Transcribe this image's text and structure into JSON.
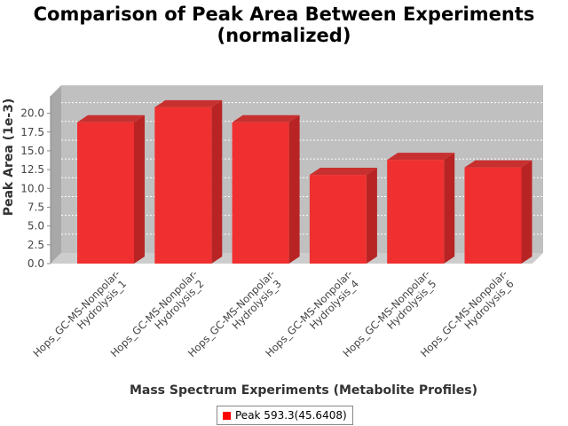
{
  "chart_data": {
    "type": "bar",
    "title_line1": "Comparison of Peak Area Between Experiments",
    "title_line2": "(normalized)",
    "xlabel": "Mass Spectrum Experiments (Metabolite Profiles)",
    "ylabel": "Peak Area (1e-3)",
    "categories": [
      [
        "Hops_GC-MS-Nonpolar-",
        "Hydrolysis_1"
      ],
      [
        "Hops_GC-MS-Nonpolar-",
        "Hydrolysis_2"
      ],
      [
        "Hops_GC-MS-Nonpolar-",
        "Hydrolysis_3"
      ],
      [
        "Hops_GC-MS-Nonpolar-",
        "Hydrolysis_4"
      ],
      [
        "Hops_GC-MS-Nonpolar-",
        "Hydrolysis_5"
      ],
      [
        "Hops_GC-MS-Nonpolar-",
        "Hydrolysis_6"
      ]
    ],
    "series": [
      {
        "name": "Peak 593.3(45.6408)",
        "values": [
          18.8,
          20.8,
          18.8,
          11.8,
          13.8,
          12.8
        ]
      }
    ],
    "ylim": [
      0,
      22.3
    ],
    "yticks": [
      "0.0",
      "2.5",
      "5.0",
      "7.5",
      "10.0",
      "12.5",
      "15.0",
      "17.5",
      "20.0"
    ],
    "grid": true,
    "legend_position": "bottom",
    "colors": {
      "bar_front": "#f03030",
      "bar_side": "#b82424",
      "bar_top": "#c83030",
      "plot_back": "#c0c0c0",
      "plot_side": "#a8a8a8",
      "plot_floor": "#cdcdcd"
    }
  }
}
